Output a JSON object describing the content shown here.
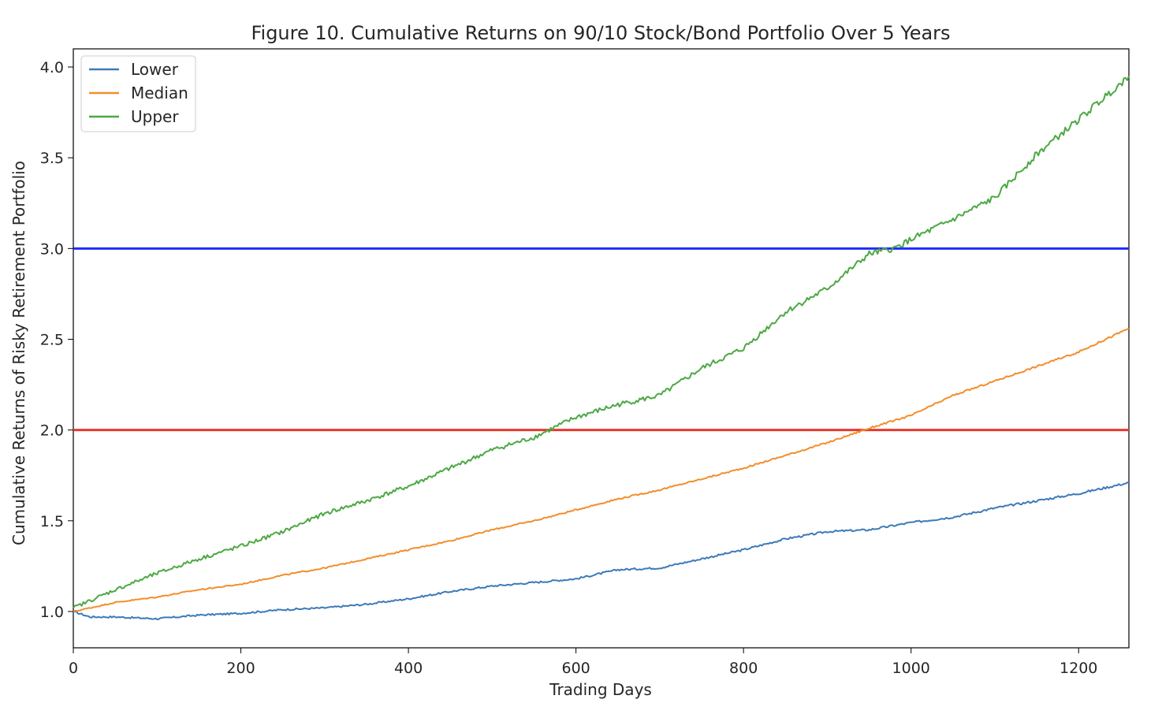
{
  "chart_data": {
    "type": "line",
    "title": "Figure 10. Cumulative Returns on 90/10 Stock/Bond Portfolio Over 5 Years",
    "xlabel": "Trading Days",
    "ylabel": "Cumulative Returns of Risky Retirement Portfolio",
    "xlim": [
      0,
      1260
    ],
    "ylim": [
      0.8,
      4.1
    ],
    "x_ticks": [
      0,
      200,
      400,
      600,
      800,
      1000,
      1200
    ],
    "y_ticks": [
      1.0,
      1.5,
      2.0,
      2.5,
      3.0,
      3.5,
      4.0
    ],
    "grid": false,
    "legend_position": "top-left",
    "series": [
      {
        "name": "Lower",
        "color": "#3c7ab8",
        "x": [
          0,
          20,
          50,
          100,
          150,
          200,
          250,
          300,
          350,
          400,
          450,
          500,
          550,
          600,
          650,
          700,
          750,
          800,
          850,
          900,
          950,
          1000,
          1050,
          1100,
          1150,
          1200,
          1260
        ],
        "y": [
          1.0,
          0.97,
          0.97,
          0.96,
          0.98,
          0.99,
          1.01,
          1.02,
          1.04,
          1.07,
          1.11,
          1.14,
          1.16,
          1.18,
          1.23,
          1.24,
          1.29,
          1.34,
          1.4,
          1.44,
          1.45,
          1.49,
          1.52,
          1.57,
          1.61,
          1.65,
          1.71
        ]
      },
      {
        "name": "Median",
        "color": "#f28e2b",
        "x": [
          0,
          50,
          100,
          150,
          200,
          250,
          300,
          350,
          400,
          450,
          500,
          550,
          600,
          650,
          700,
          750,
          800,
          850,
          900,
          950,
          1000,
          1050,
          1100,
          1150,
          1200,
          1260
        ],
        "y": [
          1.0,
          1.05,
          1.08,
          1.12,
          1.15,
          1.2,
          1.24,
          1.29,
          1.34,
          1.39,
          1.45,
          1.5,
          1.56,
          1.62,
          1.67,
          1.73,
          1.79,
          1.86,
          1.93,
          2.01,
          2.08,
          2.19,
          2.27,
          2.35,
          2.43,
          2.56
        ]
      },
      {
        "name": "Upper",
        "color": "#4da843",
        "x": [
          0,
          50,
          100,
          150,
          200,
          250,
          300,
          350,
          400,
          450,
          500,
          550,
          600,
          650,
          700,
          750,
          800,
          850,
          900,
          950,
          980,
          1000,
          1050,
          1100,
          1150,
          1200,
          1260
        ],
        "y": [
          1.02,
          1.12,
          1.21,
          1.29,
          1.36,
          1.44,
          1.54,
          1.61,
          1.69,
          1.79,
          1.89,
          1.96,
          2.07,
          2.14,
          2.19,
          2.34,
          2.45,
          2.65,
          2.78,
          2.97,
          3.0,
          3.05,
          3.16,
          3.28,
          3.52,
          3.71,
          3.95
        ]
      }
    ],
    "reference_lines": [
      {
        "y": 3.0,
        "color": "#1f2bff"
      },
      {
        "y": 2.0,
        "color": "#e8372c"
      }
    ]
  }
}
